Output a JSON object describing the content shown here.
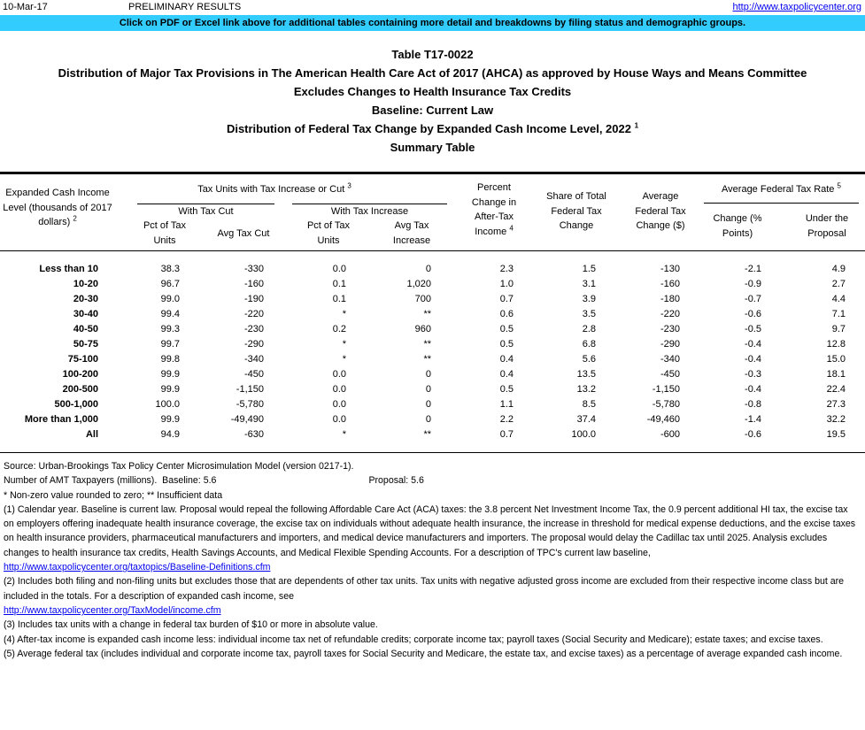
{
  "header": {
    "date": "10-Mar-17",
    "status": "PRELIMINARY RESULTS",
    "url": "http://www.taxpolicycenter.org"
  },
  "banner": "Click on PDF or Excel link above for additional tables containing more detail and breakdowns by filing status and demographic groups.",
  "titles": [
    {
      "text": "Table T17-0022"
    },
    {
      "text": "Distribution of Major Tax Provisions in The American Health Care Act of 2017 (AHCA) as approved by House Ways and Means Committee"
    },
    {
      "text": "Excludes Changes to Health Insurance Tax Credits"
    },
    {
      "text": "Baseline: Current Law"
    },
    {
      "text": "Distribution of Federal Tax Change by Expanded Cash Income Level, 2022",
      "note": "1"
    },
    {
      "text": "Summary Table"
    }
  ],
  "table": {
    "columns": {
      "income": {
        "text": "Expanded Cash Income Level (thousands of 2017 dollars)",
        "note": "2"
      },
      "tax_units": {
        "text": "Tax Units with Tax Increase or Cut",
        "note": "3"
      },
      "with_cut": "With Tax Cut",
      "cut_pct": "Pct of Tax Units",
      "cut_avg": "Avg Tax Cut",
      "with_increase": "With Tax Increase",
      "inc_pct": "Pct of Tax Units",
      "inc_avg": "Avg Tax Increase",
      "pct_change": {
        "text": "Percent Change in After-Tax Income",
        "note": "4"
      },
      "share": "Share of Total Federal Tax Change",
      "avg_change": "Average Federal Tax Change ($)",
      "rate": {
        "text": "Average Federal Tax Rate",
        "note": "5"
      },
      "rate_change": "Change (% Points)",
      "rate_under": "Under the Proposal"
    },
    "rows": [
      [
        "Less than 10",
        "38.3",
        "-330",
        "0.0",
        "0",
        "2.3",
        "1.5",
        "-130",
        "-2.1",
        "4.9"
      ],
      [
        "10-20",
        "96.7",
        "-160",
        "0.1",
        "1,020",
        "1.0",
        "3.1",
        "-160",
        "-0.9",
        "2.7"
      ],
      [
        "20-30",
        "99.0",
        "-190",
        "0.1",
        "700",
        "0.7",
        "3.9",
        "-180",
        "-0.7",
        "4.4"
      ],
      [
        "30-40",
        "99.4",
        "-220",
        "*",
        "**",
        "0.6",
        "3.5",
        "-220",
        "-0.6",
        "7.1"
      ],
      [
        "40-50",
        "99.3",
        "-230",
        "0.2",
        "960",
        "0.5",
        "2.8",
        "-230",
        "-0.5",
        "9.7"
      ],
      [
        "50-75",
        "99.7",
        "-290",
        "*",
        "**",
        "0.5",
        "6.8",
        "-290",
        "-0.4",
        "12.8"
      ],
      [
        "75-100",
        "99.8",
        "-340",
        "*",
        "**",
        "0.4",
        "5.6",
        "-340",
        "-0.4",
        "15.0"
      ],
      [
        "100-200",
        "99.9",
        "-450",
        "0.0",
        "0",
        "0.4",
        "13.5",
        "-450",
        "-0.3",
        "18.1"
      ],
      [
        "200-500",
        "99.9",
        "-1,150",
        "0.0",
        "0",
        "0.5",
        "13.2",
        "-1,150",
        "-0.4",
        "22.4"
      ],
      [
        "500-1,000",
        "100.0",
        "-5,780",
        "0.0",
        "0",
        "1.1",
        "8.5",
        "-5,780",
        "-0.8",
        "27.3"
      ],
      [
        "More than 1,000",
        "99.9",
        "-49,490",
        "0.0",
        "0",
        "2.2",
        "37.4",
        "-49,460",
        "-1.4",
        "32.2"
      ],
      [
        "All",
        "94.9",
        "-630",
        "*",
        "**",
        "0.7",
        "100.0",
        "-600",
        "-0.6",
        "19.5"
      ]
    ]
  },
  "footer": {
    "source": "Source: Urban-Brookings Tax Policy Center Microsimulation Model (version 0217-1).",
    "amt": {
      "label": "Number of AMT Taxpayers (millions).",
      "baseline": "Baseline: 5.6",
      "proposal": "Proposal: 5.6"
    },
    "legend": "* Non-zero value rounded to zero; ** Insufficient data",
    "notes": [
      {
        "text": "(1) Calendar year. Baseline is current law. Proposal would repeal the following Affordable Care Act (ACA) taxes: the 3.8 percent Net Investment Income Tax, the 0.9 percent additional HI tax, the excise tax on employers offering inadequate health insurance coverage, the excise tax on individuals without adequate health insurance, the increase in threshold for medical expense deductions, and the excise taxes on health insurance providers, pharmaceutical manufacturers and importers, and medical device manufacturers and importers. The proposal would delay the Cadillac tax until 2025. Analysis excludes changes to health insurance tax credits, Health Savings Accounts, and Medical Flexible Spending Accounts. For a description of TPC's current law baseline,",
        "link": "http://www.taxpolicycenter.org/taxtopics/Baseline-Definitions.cfm"
      },
      {
        "text": "(2) Includes both filing and non-filing units but excludes those that are dependents of other tax units. Tax units with negative adjusted gross income are excluded from their respective income class but are included in the totals. For a description of expanded cash income, see",
        "link": "http://www.taxpolicycenter.org/TaxModel/income.cfm"
      },
      {
        "text": "(3) Includes tax units with a change in federal tax burden of $10 or more in absolute value."
      },
      {
        "text": "(4) After-tax income is expanded cash income less: individual income tax net of refundable credits; corporate income tax; payroll taxes (Social Security and Medicare); estate taxes; and excise taxes."
      },
      {
        "text": "(5) Average federal tax (includes individual and corporate income tax, payroll taxes for Social Security and Medicare, the estate tax, and excise taxes) as a percentage of average expanded cash income."
      }
    ]
  }
}
